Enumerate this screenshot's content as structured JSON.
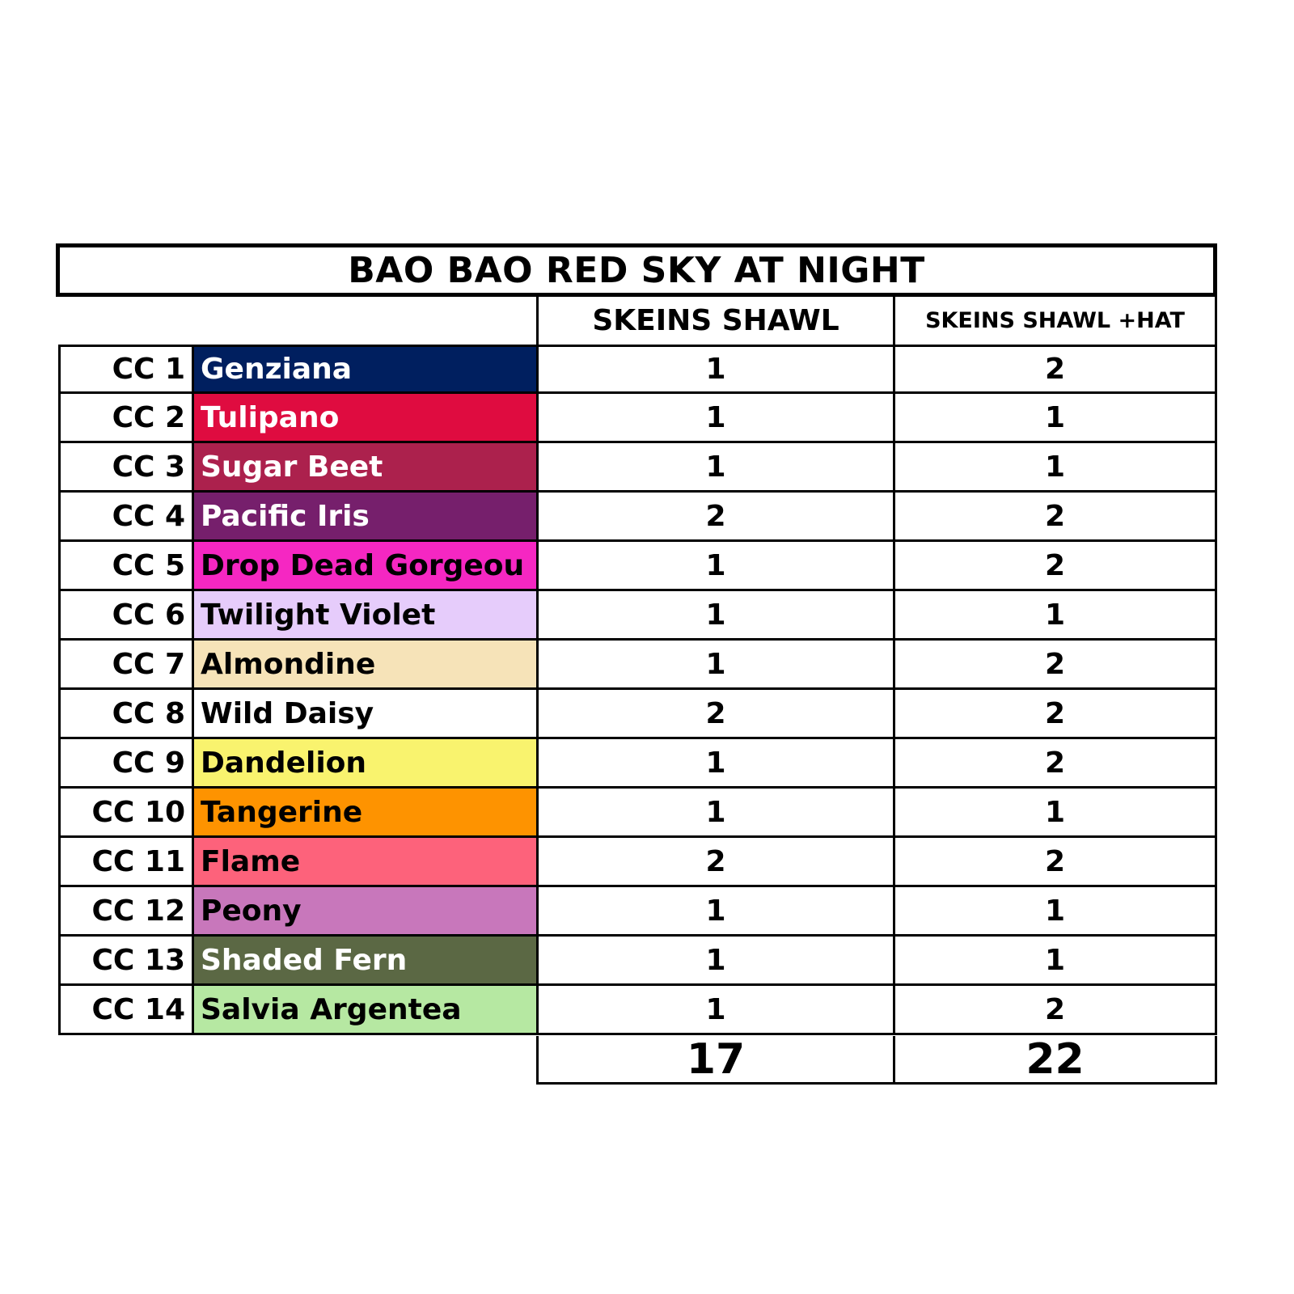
{
  "title": "BAO BAO RED SKY AT NIGHT",
  "headers": {
    "col1": "SKEINS SHAWL",
    "col2": "SKEINS SHAWL +HAT"
  },
  "rows": [
    {
      "cc": "CC 1",
      "name": "Genziana",
      "bg": "#001f5f",
      "fg": "#ffffff",
      "shawl": "1",
      "shawl_hat": "2"
    },
    {
      "cc": "CC 2",
      "name": "Tulipano",
      "bg": "#df0c40",
      "fg": "#ffffff",
      "shawl": "1",
      "shawl_hat": "1"
    },
    {
      "cc": "CC 3",
      "name": "Sugar Beet",
      "bg": "#ac214d",
      "fg": "#ffffff",
      "shawl": "1",
      "shawl_hat": "1"
    },
    {
      "cc": "CC 4",
      "name": "Pacific Iris",
      "bg": "#761f6c",
      "fg": "#ffffff",
      "shawl": "2",
      "shawl_hat": "2"
    },
    {
      "cc": "CC 5",
      "name": "Drop Dead Gorgeou",
      "bg": "#f527c2",
      "fg": "#000000",
      "shawl": "1",
      "shawl_hat": "2"
    },
    {
      "cc": "CC 6",
      "name": "Twilight Violet",
      "bg": "#e6ccfb",
      "fg": "#000000",
      "shawl": "1",
      "shawl_hat": "1"
    },
    {
      "cc": "CC 7",
      "name": "Almondine",
      "bg": "#f6e3b8",
      "fg": "#000000",
      "shawl": "1",
      "shawl_hat": "2"
    },
    {
      "cc": "CC 8",
      "name": "Wild Daisy",
      "bg": "#ffffff",
      "fg": "#000000",
      "shawl": "2",
      "shawl_hat": "2"
    },
    {
      "cc": "CC 9",
      "name": "Dandelion",
      "bg": "#f9f36e",
      "fg": "#000000",
      "shawl": "1",
      "shawl_hat": "2"
    },
    {
      "cc": "CC 10",
      "name": "Tangerine",
      "bg": "#fe9300",
      "fg": "#000000",
      "shawl": "1",
      "shawl_hat": "1"
    },
    {
      "cc": "CC 11",
      "name": "Flame",
      "bg": "#fd627b",
      "fg": "#000000",
      "shawl": "2",
      "shawl_hat": "2"
    },
    {
      "cc": "CC 12",
      "name": "Peony",
      "bg": "#c877bb",
      "fg": "#000000",
      "shawl": "1",
      "shawl_hat": "1"
    },
    {
      "cc": "CC 13",
      "name": "Shaded Fern",
      "bg": "#5b6844",
      "fg": "#ffffff",
      "shawl": "1",
      "shawl_hat": "1"
    },
    {
      "cc": "CC 14",
      "name": "Salvia Argentea",
      "bg": "#b6e8a2",
      "fg": "#000000",
      "shawl": "1",
      "shawl_hat": "2"
    }
  ],
  "totals": {
    "shawl": "17",
    "shawl_hat": "22"
  }
}
